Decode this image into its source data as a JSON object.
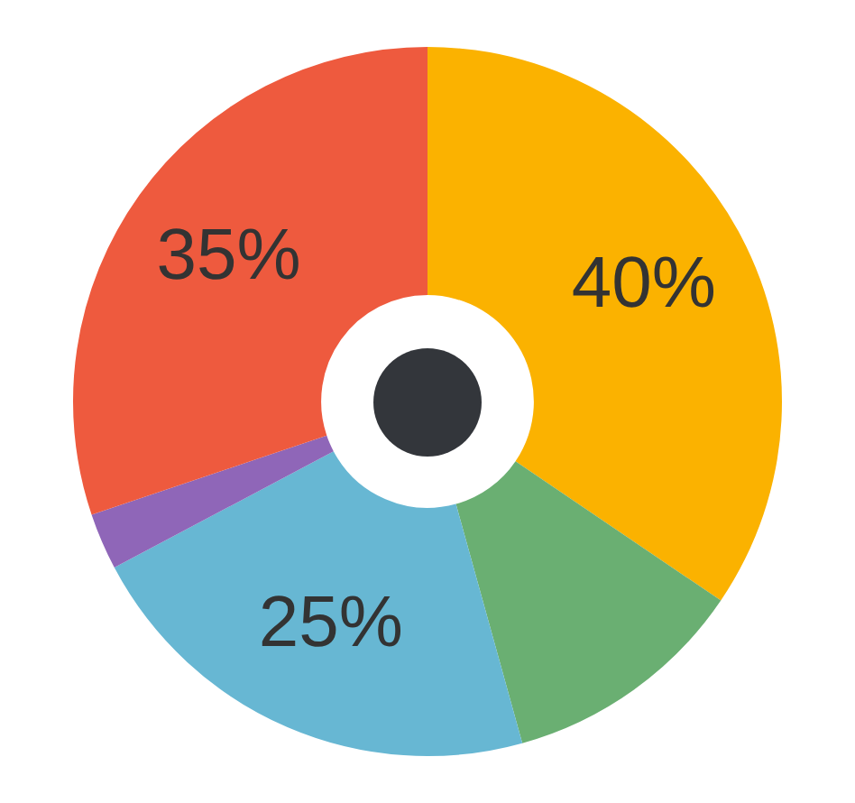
{
  "chart_data": {
    "type": "donut",
    "categories": [
      null,
      null,
      null,
      null,
      null
    ],
    "values": [
      40,
      13,
      25,
      3,
      35
    ],
    "colors": [
      "#fbb200",
      "#6aaf72",
      "#67b7d3",
      "#8f66b8",
      "#ee5a3e"
    ],
    "value_labels": [
      "40%",
      null,
      "25%",
      null,
      "35%"
    ],
    "legend": false
  }
}
